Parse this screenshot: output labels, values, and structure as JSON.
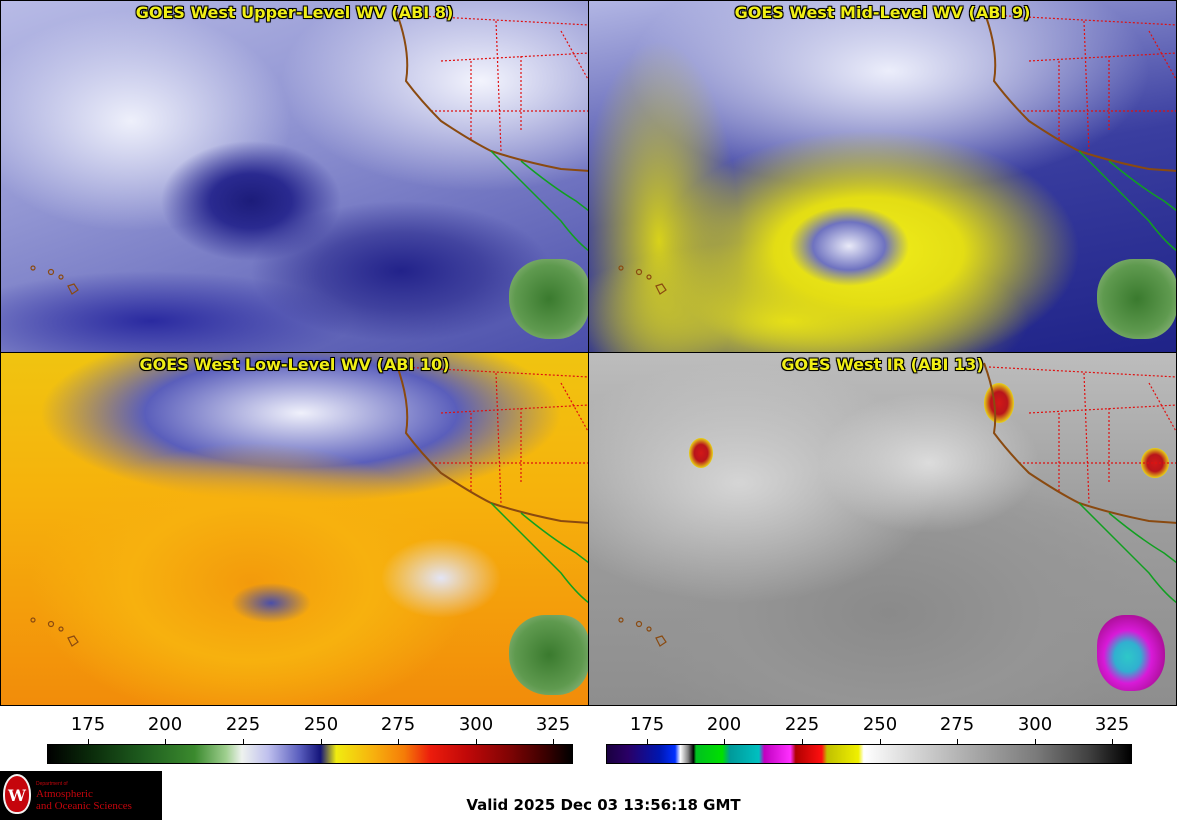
{
  "panels": [
    {
      "title": "GOES West Upper-Level WV (ABI 8)"
    },
    {
      "title": "GOES West Mid-Level WV (ABI 9)"
    },
    {
      "title": "GOES West Low-Level WV (ABI 10)"
    },
    {
      "title": "GOES West IR (ABI 13)"
    }
  ],
  "colorbars": {
    "left": {
      "ticks": [
        "175",
        "200",
        "225",
        "250",
        "275",
        "300",
        "325"
      ]
    },
    "right": {
      "ticks": [
        "175",
        "200",
        "225",
        "250",
        "275",
        "300",
        "325"
      ]
    }
  },
  "logo": {
    "dept": "Department of",
    "line1": "Atmospheric",
    "line2": "and Oceanic Sciences",
    "crest_letter": "W"
  },
  "valid_time": "Valid 2025 Dec 03 13:56:18 GMT",
  "colors": {
    "title_yellow": "#f0ef16",
    "state_border": "#e01010",
    "coast": "#8a4a10",
    "mexico_border": "#10a020"
  },
  "icons": {
    "logo": "uw-crest-icon"
  }
}
